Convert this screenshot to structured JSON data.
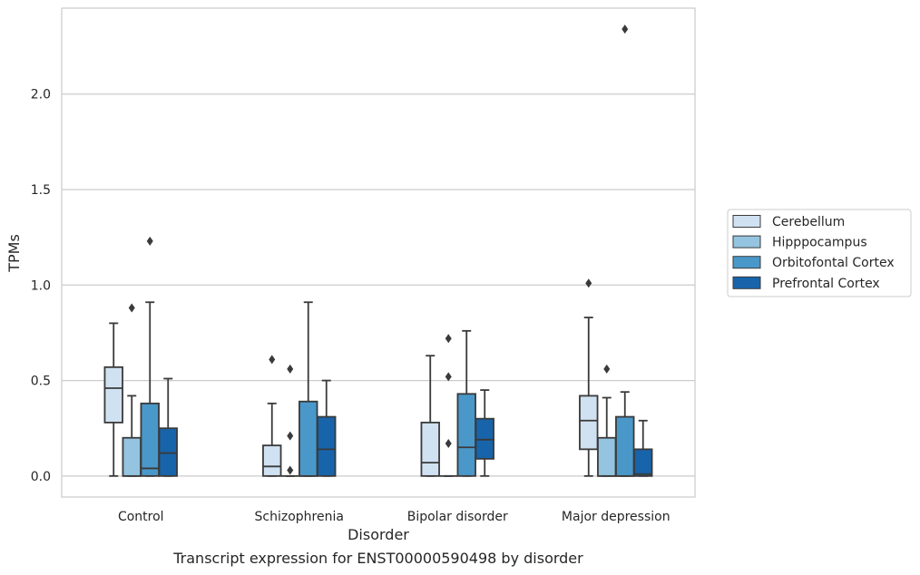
{
  "caption": "Transcript expression for ENST00000590498 by disorder",
  "chart_data": {
    "type": "box",
    "xlabel": "Disorder",
    "ylabel": "TPMs",
    "categories": [
      "Control",
      "Schizophrenia",
      "Bipolar disorder",
      "Major depression"
    ],
    "yticks": [
      "0.0",
      "0.5",
      "1.0",
      "1.5",
      "2.0"
    ],
    "ylim": [
      -0.11,
      2.45
    ],
    "grid": "horizontal",
    "legend_position": "right",
    "series": [
      {
        "name": "Cerebellum",
        "color": "#d0e1f2",
        "boxes": [
          {
            "whisker_low": 0.0,
            "q1": 0.28,
            "median": 0.46,
            "q3": 0.57,
            "whisker_high": 0.8,
            "outliers": []
          },
          {
            "whisker_low": 0.0,
            "q1": 0.0,
            "median": 0.05,
            "q3": 0.16,
            "whisker_high": 0.38,
            "outliers": [
              0.61
            ]
          },
          {
            "whisker_low": 0.0,
            "q1": 0.0,
            "median": 0.07,
            "q3": 0.28,
            "whisker_high": 0.63,
            "outliers": []
          },
          {
            "whisker_low": 0.0,
            "q1": 0.14,
            "median": 0.29,
            "q3": 0.42,
            "whisker_high": 0.83,
            "outliers": [
              1.01
            ]
          }
        ]
      },
      {
        "name": "Hipppocampus",
        "color": "#94c4df",
        "boxes": [
          {
            "whisker_low": 0.0,
            "q1": 0.0,
            "median": 0.0,
            "q3": 0.2,
            "whisker_high": 0.42,
            "outliers": [
              0.88
            ]
          },
          {
            "whisker_low": 0.0,
            "q1": 0.0,
            "median": 0.0,
            "q3": 0.0,
            "whisker_high": 0.0,
            "outliers": [
              0.56,
              0.21,
              0.03
            ]
          },
          {
            "whisker_low": 0.0,
            "q1": 0.0,
            "median": 0.0,
            "q3": 0.0,
            "whisker_high": 0.0,
            "outliers": [
              0.72,
              0.52,
              0.17
            ]
          },
          {
            "whisker_low": 0.0,
            "q1": 0.0,
            "median": 0.0,
            "q3": 0.2,
            "whisker_high": 0.41,
            "outliers": [
              0.56
            ]
          }
        ]
      },
      {
        "name": "Orbitofontal Cortex",
        "color": "#4a98c9",
        "boxes": [
          {
            "whisker_low": 0.0,
            "q1": 0.0,
            "median": 0.04,
            "q3": 0.38,
            "whisker_high": 0.91,
            "outliers": [
              1.23
            ]
          },
          {
            "whisker_low": 0.0,
            "q1": 0.0,
            "median": 0.0,
            "q3": 0.39,
            "whisker_high": 0.91,
            "outliers": []
          },
          {
            "whisker_low": 0.0,
            "q1": 0.0,
            "median": 0.15,
            "q3": 0.43,
            "whisker_high": 0.76,
            "outliers": []
          },
          {
            "whisker_low": 0.0,
            "q1": 0.0,
            "median": 0.0,
            "q3": 0.31,
            "whisker_high": 0.44,
            "outliers": [
              2.34
            ]
          }
        ]
      },
      {
        "name": "Prefrontal Cortex",
        "color": "#1764ab",
        "boxes": [
          {
            "whisker_low": 0.0,
            "q1": 0.0,
            "median": 0.12,
            "q3": 0.25,
            "whisker_high": 0.51,
            "outliers": []
          },
          {
            "whisker_low": 0.0,
            "q1": 0.0,
            "median": 0.14,
            "q3": 0.31,
            "whisker_high": 0.5,
            "outliers": []
          },
          {
            "whisker_low": 0.0,
            "q1": 0.09,
            "median": 0.19,
            "q3": 0.3,
            "whisker_high": 0.45,
            "outliers": []
          },
          {
            "whisker_low": 0.0,
            "q1": 0.0,
            "median": 0.01,
            "q3": 0.14,
            "whisker_high": 0.29,
            "outliers": []
          }
        ]
      }
    ]
  }
}
